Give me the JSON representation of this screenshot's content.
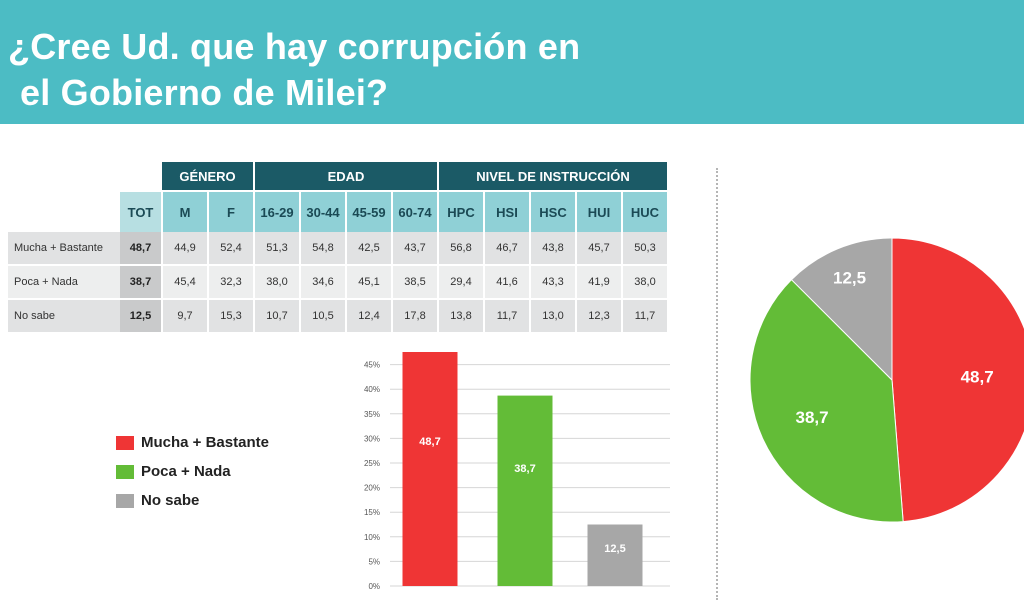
{
  "title": {
    "line1": "¿Cree Ud. que hay corrupción en",
    "line2": "el Gobierno de Milei?"
  },
  "table": {
    "groups": [
      {
        "label": "GÉNERO",
        "span": 2
      },
      {
        "label": "EDAD",
        "span": 4
      },
      {
        "label": "NIVEL DE INSTRUCCIÓN",
        "span": 5
      }
    ],
    "tot_label": "TOT",
    "columns": [
      "M",
      "F",
      "16-29",
      "30-44",
      "45-59",
      "60-74",
      "HPC",
      "HSI",
      "HSC",
      "HUI",
      "HUC"
    ],
    "rows": [
      {
        "label": "Mucha + Bastante",
        "tot": "48,7",
        "values": [
          "44,9",
          "52,4",
          "51,3",
          "54,8",
          "42,5",
          "43,7",
          "56,8",
          "46,7",
          "43,8",
          "45,7",
          "50,3"
        ]
      },
      {
        "label": "Poca + Nada",
        "tot": "38,7",
        "values": [
          "45,4",
          "32,3",
          "38,0",
          "34,6",
          "45,1",
          "38,5",
          "29,4",
          "41,6",
          "43,3",
          "41,9",
          "38,0"
        ]
      },
      {
        "label": "No sabe",
        "tot": "12,5",
        "values": [
          "9,7",
          "15,3",
          "10,7",
          "10,5",
          "12,4",
          "17,8",
          "13,8",
          "11,7",
          "13,0",
          "12,3",
          "11,7"
        ]
      }
    ]
  },
  "legend": [
    {
      "label": "Mucha + Bastante",
      "color": "#ef3535"
    },
    {
      "label": "Poca + Nada",
      "color": "#63bc37"
    },
    {
      "label": "No sabe",
      "color": "#a7a7a7"
    }
  ],
  "chart_data": [
    {
      "type": "bar",
      "categories": [
        "Mucha + Bastante",
        "Poca + Nada",
        "No sabe"
      ],
      "values": [
        48.7,
        38.7,
        12.5
      ],
      "data_labels": [
        "48,7",
        "38,7",
        "12,5"
      ],
      "colors": [
        "#ef3535",
        "#63bc37",
        "#a7a7a7"
      ],
      "ylim": [
        0,
        45
      ],
      "yticks": [
        "0%",
        "5%",
        "10%",
        "15%",
        "20%",
        "25%",
        "30%",
        "35%",
        "40%",
        "45%"
      ],
      "grid": true
    },
    {
      "type": "pie",
      "labels": [
        "Mucha + Bastante",
        "Poca + Nada",
        "No sabe"
      ],
      "values": [
        48.7,
        38.7,
        12.5
      ],
      "data_labels": [
        "48,7",
        "38,7",
        "12,5"
      ],
      "colors": [
        "#ef3535",
        "#63bc37",
        "#a7a7a7"
      ]
    }
  ]
}
